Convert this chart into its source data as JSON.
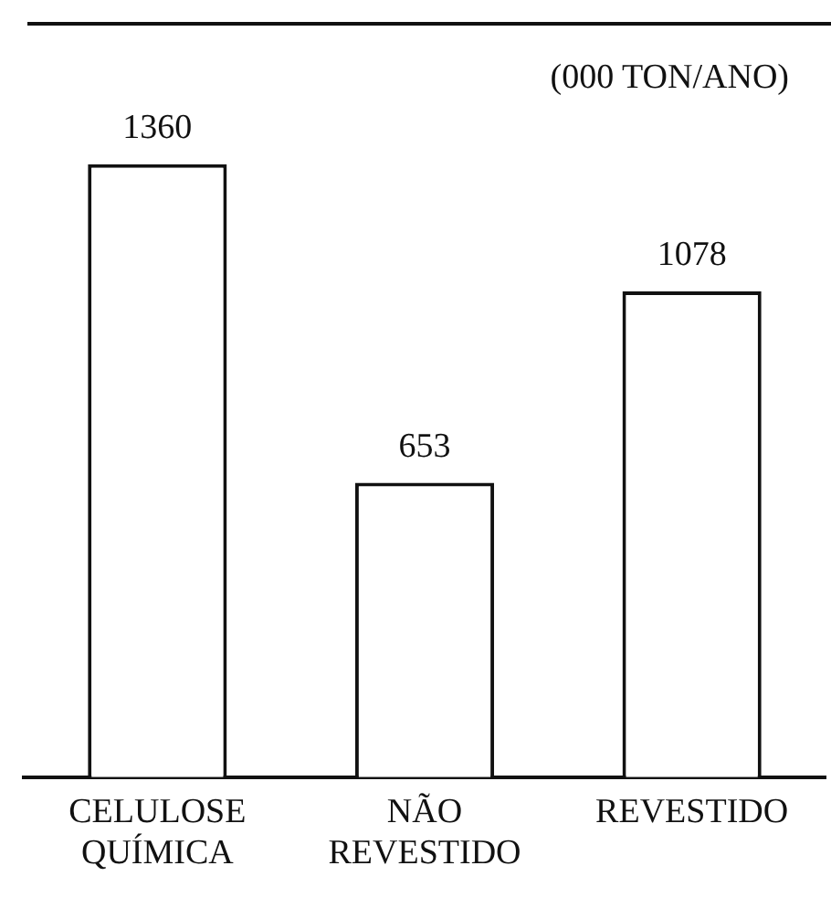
{
  "chart_data": {
    "type": "bar",
    "categories": [
      "CELULOSE QUÍMICA",
      "NÃO REVESTIDO",
      "REVESTIDO"
    ],
    "values": [
      1360,
      653,
      1078
    ],
    "color": "#ffffff",
    "data_labels": true,
    "annotations": [
      "(000 TON/ANO)"
    ],
    "grid": false,
    "legend": false
  }
}
